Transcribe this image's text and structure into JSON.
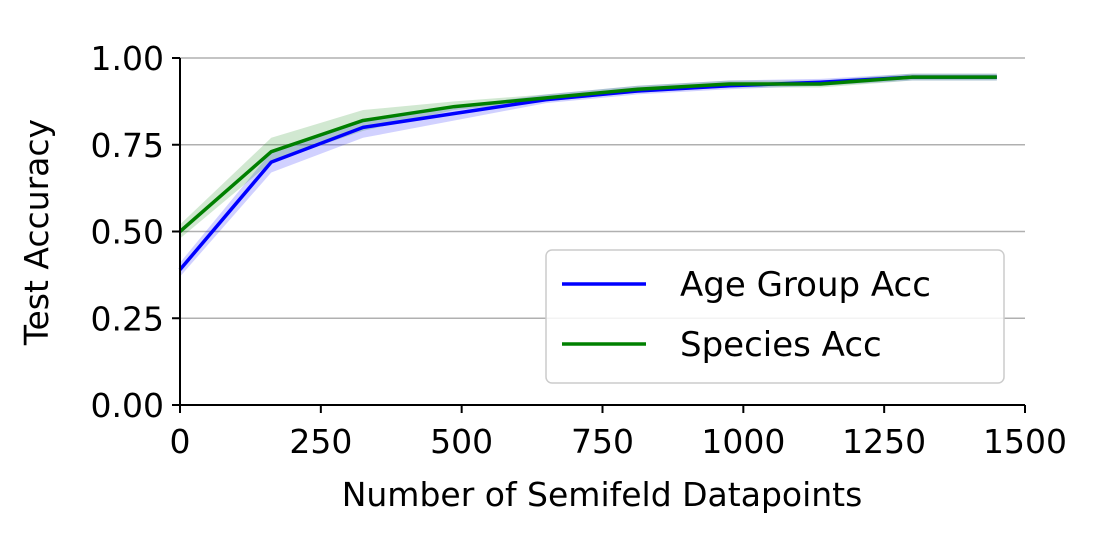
{
  "chart_data": {
    "type": "line",
    "title": "",
    "xlabel": "Number of Semifeld Datapoints",
    "ylabel": "Test Accuracy",
    "xlim": [
      0,
      1500
    ],
    "ylim": [
      0,
      1
    ],
    "x_ticks": [
      "0",
      "250",
      "500",
      "750",
      "1000",
      "1250",
      "1500"
    ],
    "y_ticks": [
      "0.00",
      "0.25",
      "0.50",
      "0.75",
      "1.00"
    ],
    "grid": "y",
    "legend_position": "lower-right",
    "series": [
      {
        "name": "Age Group Acc",
        "color": "#0000ff",
        "x": [
          0,
          162,
          325,
          487,
          650,
          812,
          975,
          1137,
          1300,
          1450
        ],
        "y": [
          0.39,
          0.7,
          0.8,
          0.84,
          0.88,
          0.905,
          0.92,
          0.93,
          0.945,
          0.945
        ],
        "lower": [
          0.37,
          0.67,
          0.77,
          0.82,
          0.87,
          0.895,
          0.91,
          0.92,
          0.935,
          0.935
        ],
        "upper": [
          0.41,
          0.73,
          0.82,
          0.86,
          0.895,
          0.92,
          0.935,
          0.94,
          0.955,
          0.955
        ]
      },
      {
        "name": "Species Acc",
        "color": "#008000",
        "x": [
          0,
          162,
          325,
          487,
          650,
          812,
          975,
          1137,
          1300,
          1450
        ],
        "y": [
          0.5,
          0.73,
          0.82,
          0.86,
          0.885,
          0.91,
          0.925,
          0.925,
          0.945,
          0.945
        ],
        "lower": [
          0.48,
          0.7,
          0.79,
          0.85,
          0.875,
          0.9,
          0.915,
          0.915,
          0.935,
          0.935
        ],
        "upper": [
          0.52,
          0.77,
          0.85,
          0.875,
          0.895,
          0.92,
          0.935,
          0.935,
          0.955,
          0.955
        ]
      }
    ]
  }
}
